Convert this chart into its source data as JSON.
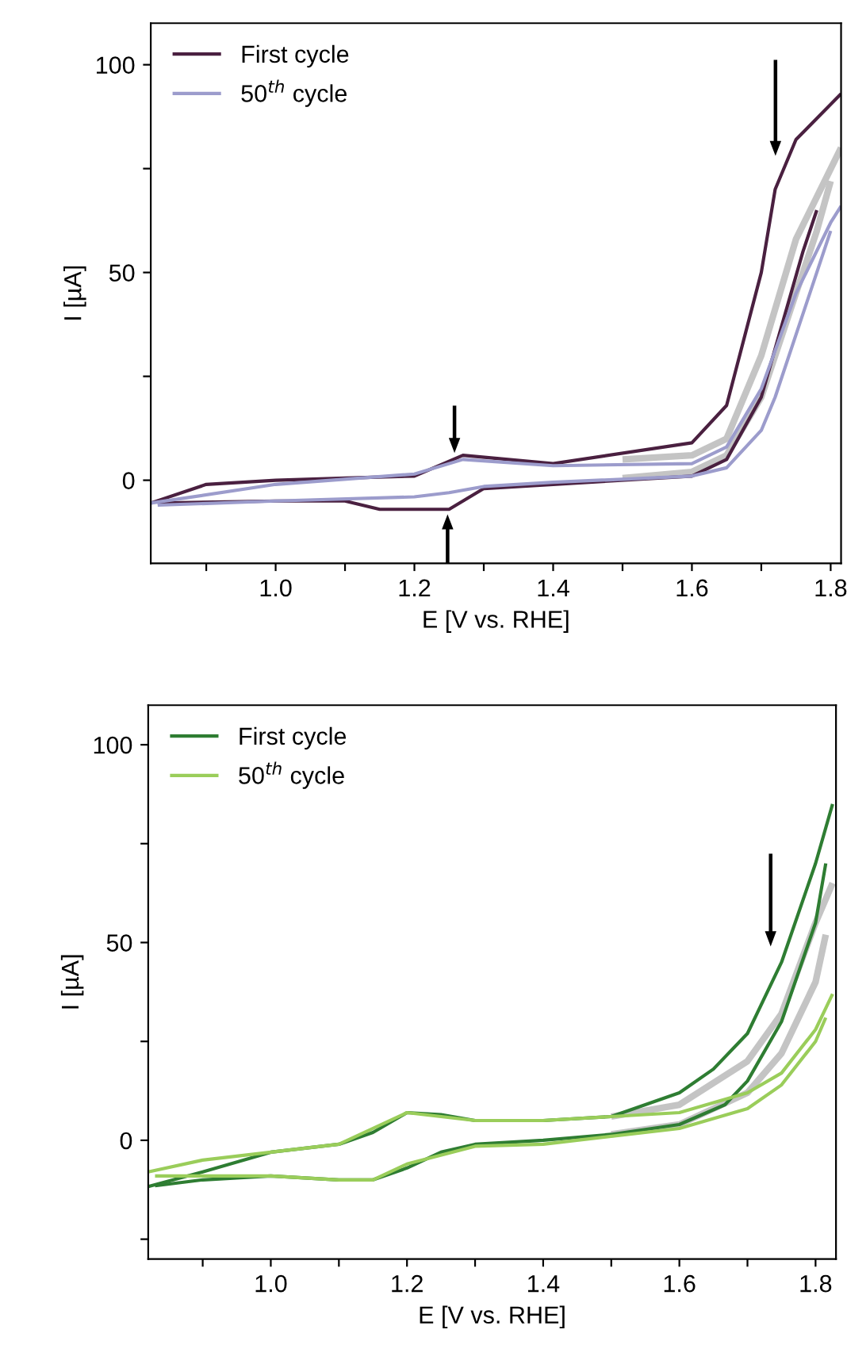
{
  "chart_data": [
    {
      "type": "line",
      "xlabel": "E [V vs. RHE]",
      "ylabel": "I [µA]",
      "xlim": [
        0.82,
        1.815
      ],
      "ylim": [
        -20,
        110
      ],
      "xticks": [
        {
          "value": 0.9,
          "label": null
        },
        {
          "value": 1.0,
          "label": "1.0"
        },
        {
          "value": 1.1,
          "label": null
        },
        {
          "value": 1.2,
          "label": "1.2"
        },
        {
          "value": 1.3,
          "label": null
        },
        {
          "value": 1.4,
          "label": "1.4"
        },
        {
          "value": 1.5,
          "label": null
        },
        {
          "value": 1.6,
          "label": "1.6"
        },
        {
          "value": 1.7,
          "label": null
        },
        {
          "value": 1.8,
          "label": "1.8"
        }
      ],
      "yticks": [
        0,
        {
          "value": 25,
          "label": null
        },
        50,
        {
          "value": 75,
          "label": null
        },
        100
      ],
      "grid": false,
      "legend": "top left",
      "marker": "none",
      "series": [
        {
          "color": "#c4c4c4",
          "x": [
            1.5,
            1.6,
            1.65,
            1.7,
            1.75,
            1.815
          ],
          "values": [
            5,
            6,
            10,
            30,
            58,
            80
          ]
        },
        {
          "color": "#c4c4c4",
          "x": [
            1.5,
            1.6,
            1.65,
            1.7,
            1.72,
            1.75,
            1.78,
            1.8
          ],
          "values": [
            0.5,
            2,
            6,
            20,
            30,
            45,
            60,
            72
          ]
        },
        {
          "name": "First cycle",
          "color": "#4a2040",
          "x": [
            0.82,
            0.9,
            1.0,
            1.1,
            1.2,
            1.27,
            1.4,
            1.6,
            1.65,
            1.7,
            1.72,
            1.75,
            1.815
          ],
          "values": [
            -5.5,
            -1,
            0,
            0.5,
            1,
            6,
            4,
            9,
            18,
            50,
            70,
            82,
            93
          ]
        },
        {
          "color": "#4a2040",
          "x": [
            0.83,
            1.0,
            1.1,
            1.15,
            1.25,
            1.3,
            1.4,
            1.6,
            1.65,
            1.7,
            1.76,
            1.78
          ],
          "values": [
            -5.5,
            -5,
            -5,
            -7,
            -7,
            -2,
            -1,
            1,
            5,
            20,
            55,
            65
          ]
        },
        {
          "name": "50$^{th}$ cycle",
          "color": "#9c9ccc",
          "x": [
            0.82,
            1.0,
            1.2,
            1.27,
            1.4,
            1.6,
            1.65,
            1.7,
            1.75,
            1.8,
            1.815
          ],
          "values": [
            -5.5,
            -1,
            1.5,
            5,
            3.5,
            4,
            8,
            22,
            45,
            62,
            66
          ]
        },
        {
          "color": "#9c9ccc",
          "x": [
            0.83,
            1.0,
            1.2,
            1.25,
            1.3,
            1.4,
            1.6,
            1.65,
            1.7,
            1.72,
            1.75,
            1.78,
            1.8
          ],
          "values": [
            -6,
            -5,
            -4,
            -3,
            -1.5,
            -0.5,
            1,
            3,
            12,
            20,
            35,
            50,
            60
          ]
        }
      ]
    },
    {
      "type": "line",
      "xlabel": "E [V vs. RHE]",
      "ylabel": "I [µA]",
      "xlim": [
        0.82,
        1.83
      ],
      "ylim": [
        -30,
        110
      ],
      "xticks": [
        {
          "value": 0.9,
          "label": null
        },
        {
          "value": 1.0,
          "label": "1.0"
        },
        {
          "value": 1.1,
          "label": null
        },
        {
          "value": 1.2,
          "label": "1.2"
        },
        {
          "value": 1.3,
          "label": null
        },
        {
          "value": 1.4,
          "label": "1.4"
        },
        {
          "value": 1.5,
          "label": null
        },
        {
          "value": 1.6,
          "label": "1.6"
        },
        {
          "value": 1.7,
          "label": null
        },
        {
          "value": 1.8,
          "label": "1.8"
        }
      ],
      "yticks": [
        {
          "value": -25,
          "label": null
        },
        0,
        {
          "value": 25,
          "label": null
        },
        50,
        {
          "value": 75,
          "label": null
        },
        100
      ],
      "grid": false,
      "legend": "top left",
      "marker": "none",
      "series": [
        {
          "color": "#c4c4c4",
          "x": [
            1.5,
            1.6,
            1.7,
            1.75,
            1.8,
            1.825
          ],
          "values": [
            6,
            9,
            20,
            32,
            55,
            65
          ]
        },
        {
          "color": "#c4c4c4",
          "x": [
            1.5,
            1.6,
            1.7,
            1.75,
            1.8,
            1.815
          ],
          "values": [
            1.5,
            4,
            12,
            22,
            40,
            52
          ]
        },
        {
          "name": "First cycle",
          "color": "#2e7d32",
          "x": [
            0.82,
            0.9,
            1.0,
            1.1,
            1.15,
            1.2,
            1.25,
            1.3,
            1.4,
            1.5,
            1.6,
            1.65,
            1.7,
            1.75,
            1.8,
            1.825
          ],
          "values": [
            -11.7,
            -8,
            -3,
            -1,
            2,
            7,
            6.5,
            5,
            5,
            6,
            12,
            18,
            27,
            45,
            70,
            85
          ]
        },
        {
          "color": "#2e7d32",
          "x": [
            0.83,
            0.9,
            1.0,
            1.1,
            1.15,
            1.2,
            1.25,
            1.3,
            1.4,
            1.5,
            1.6,
            1.667,
            1.7,
            1.75,
            1.8,
            1.815
          ],
          "values": [
            -11.5,
            -10,
            -9,
            -10,
            -10,
            -7,
            -3,
            -1,
            0,
            1.5,
            4,
            9,
            15,
            30,
            55,
            70
          ]
        },
        {
          "name": "50$^{th}$ cycle",
          "color": "#9acd5a",
          "x": [
            0.82,
            0.9,
            1.0,
            1.1,
            1.2,
            1.3,
            1.4,
            1.6,
            1.7,
            1.75,
            1.8,
            1.825
          ],
          "values": [
            -8,
            -5,
            -3,
            -1,
            7,
            5,
            5,
            7,
            12,
            17,
            28,
            37
          ]
        },
        {
          "color": "#9acd5a",
          "x": [
            0.83,
            1.0,
            1.1,
            1.15,
            1.2,
            1.3,
            1.4,
            1.6,
            1.7,
            1.75,
            1.8,
            1.815
          ],
          "values": [
            -9,
            -9,
            -10,
            -10,
            -6,
            -1.5,
            -1,
            3,
            8,
            14,
            25,
            31
          ]
        }
      ]
    }
  ]
}
